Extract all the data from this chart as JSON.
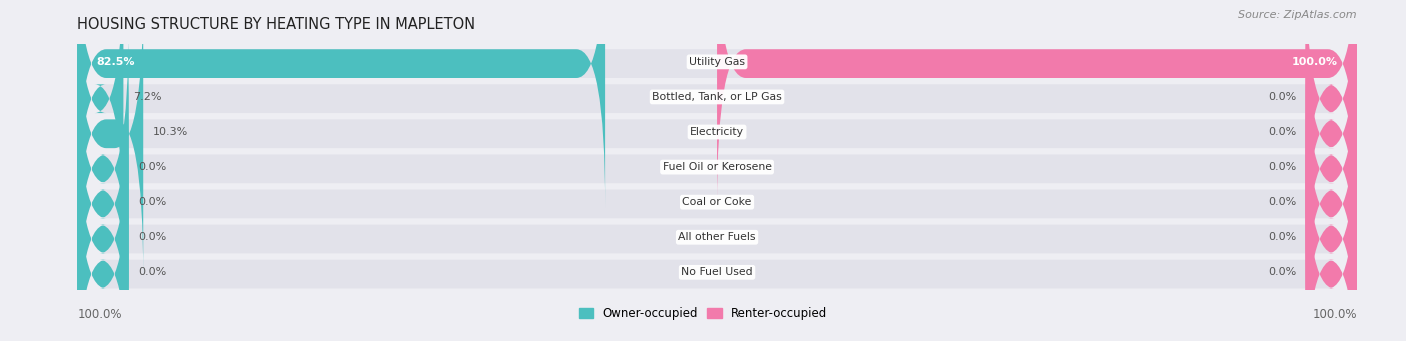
{
  "title": "HOUSING STRUCTURE BY HEATING TYPE IN MAPLETON",
  "source": "Source: ZipAtlas.com",
  "categories": [
    "Utility Gas",
    "Bottled, Tank, or LP Gas",
    "Electricity",
    "Fuel Oil or Kerosene",
    "Coal or Coke",
    "All other Fuels",
    "No Fuel Used"
  ],
  "owner_values": [
    82.5,
    7.2,
    10.3,
    0.0,
    0.0,
    0.0,
    0.0
  ],
  "renter_values": [
    100.0,
    0.0,
    0.0,
    0.0,
    0.0,
    0.0,
    0.0
  ],
  "owner_color": "#4cbfbf",
  "renter_color": "#f27aab",
  "bg_color": "#eeeef3",
  "bar_bg_color": "#e2e2ea",
  "title_color": "#222222",
  "source_color": "#888888",
  "axis_label_color": "#666666",
  "max_val": 100.0,
  "min_bar_display": 8.0,
  "left_label": "100.0%",
  "right_label": "100.0%",
  "figsize": [
    14.06,
    3.41
  ],
  "dpi": 100
}
